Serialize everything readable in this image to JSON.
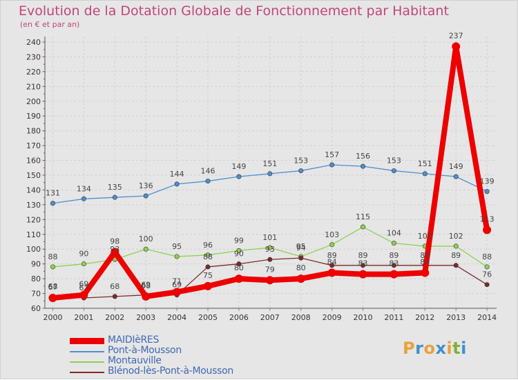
{
  "title": "Evolution de la Dotation Globale de Fonctionnement par Habitant",
  "subtitle": "(en € et par an)",
  "logo": {
    "letters": [
      "P",
      "r",
      "o",
      "x",
      "i",
      "t",
      "i"
    ],
    "colors": [
      "#e8a23a",
      "#3f8fd0",
      "#e8a23a",
      "#3f8fd0",
      "#e8a23a",
      "#7fb13a",
      "#3f8fd0"
    ]
  },
  "chart_data": {
    "type": "line",
    "x": [
      "2000",
      "2001",
      "2002",
      "2003",
      "2004",
      "2005",
      "2006",
      "2007",
      "2008",
      "2009",
      "2010",
      "2011",
      "2012",
      "2013",
      "2014"
    ],
    "ylim": [
      60,
      240
    ],
    "yticks": [
      60,
      70,
      80,
      90,
      100,
      110,
      120,
      130,
      140,
      150,
      160,
      170,
      180,
      190,
      200,
      210,
      220,
      230,
      240
    ],
    "grid": true,
    "legend_position": "bottom-left",
    "series": [
      {
        "name": "MAIDIèRES",
        "color": "#ee0000",
        "emphasis": true,
        "values": [
          67,
          69,
          98,
          68,
          71,
          75,
          80,
          79,
          80,
          84,
          83,
          83,
          84,
          237,
          113
        ],
        "labels": [
          "67",
          "69",
          "98",
          "68",
          "71",
          "75",
          "80",
          "79",
          "80",
          "84",
          "83",
          "83",
          "84",
          "237",
          "113"
        ]
      },
      {
        "name": "Pont-à-Mousson",
        "color": "#4d8fcf",
        "emphasis": false,
        "values": [
          131,
          134,
          135,
          136,
          144,
          146,
          149,
          151,
          153,
          157,
          156,
          153,
          151,
          149,
          139
        ],
        "labels": [
          "131",
          "134",
          "135",
          "136",
          "144",
          "146",
          "149",
          "151",
          "153",
          "157",
          "156",
          "153",
          "151",
          "149",
          "139"
        ]
      },
      {
        "name": "Montauville",
        "color": "#8fd14f",
        "emphasis": false,
        "values": [
          88,
          90,
          93,
          100,
          95,
          96,
          99,
          101,
          95,
          103,
          115,
          104,
          102,
          102,
          88
        ],
        "labels": [
          "88",
          "90",
          "93",
          "100",
          "95",
          "96",
          "99",
          "101",
          "95",
          "103",
          "115",
          "104",
          "102",
          "102",
          "88"
        ]
      },
      {
        "name": "Blénod-lès-Pont-à-Mousson",
        "color": "#7b2a2a",
        "emphasis": false,
        "values": [
          68,
          67,
          68,
          69,
          69,
          88,
          90,
          93,
          94,
          89,
          89,
          89,
          89,
          89,
          76
        ],
        "labels": [
          "68",
          "67",
          "68",
          "69",
          "69",
          "88",
          "90",
          "93",
          "94",
          "89",
          "89",
          "89",
          "89",
          "89",
          "76"
        ]
      }
    ]
  }
}
